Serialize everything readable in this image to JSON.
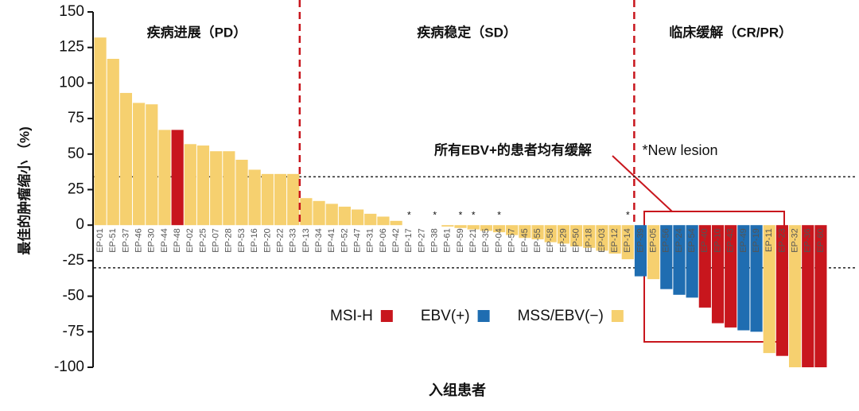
{
  "chart_data": {
    "type": "bar",
    "y_label": "最佳的肿瘤缩小 （%)",
    "x_label": "入组患者",
    "categories": [
      "EP-01",
      "EP-51",
      "EP-37",
      "EP-46",
      "EP-30",
      "EP-44",
      "EP-48",
      "EP-02",
      "EP-25",
      "EP-07",
      "EP-28",
      "EP-53",
      "EP-16",
      "EP-20",
      "EP-22",
      "EP-33",
      "EP-13",
      "EP-34",
      "EP-41",
      "EP-52",
      "EP-47",
      "EP-31",
      "EP-06",
      "EP-42",
      "EP-17",
      "EP-27",
      "EP-38",
      "EP-61",
      "EP-59",
      "EP-21",
      "EP-35",
      "EP-04",
      "EP-57",
      "EP-45",
      "EP-55",
      "EP-58",
      "EP-29",
      "EP-50",
      "EP-18",
      "EP-03",
      "EP-12",
      "EP-14",
      "EP-39",
      "EP-05",
      "EP-56",
      "EP-24",
      "EP-54",
      "EP-40",
      "EP-10",
      "EP-43",
      "EP-49",
      "EP-19",
      "EP-11",
      "EP-23",
      "EP-32",
      "EP-36",
      "EP-60"
    ],
    "values": [
      132,
      117,
      93,
      86,
      85,
      67,
      67,
      57,
      56,
      52,
      52,
      46,
      39,
      36,
      36,
      36,
      19,
      17,
      15,
      13,
      11,
      8,
      6,
      3,
      0,
      0,
      0,
      -1,
      -2,
      -3,
      -4,
      -5,
      -7,
      -9,
      -10,
      -12,
      -13,
      -15,
      -16,
      -18,
      -20,
      -24,
      -36,
      -38,
      -45,
      -49,
      -51,
      -58,
      -69,
      -72,
      -74,
      -75,
      -90,
      -92,
      -100,
      -100,
      -100
    ],
    "groups": [
      "MSS/EBV(−)",
      "MSS/EBV(−)",
      "MSS/EBV(−)",
      "MSS/EBV(−)",
      "MSS/EBV(−)",
      "MSS/EBV(−)",
      "MSI-H",
      "MSS/EBV(−)",
      "MSS/EBV(−)",
      "MSS/EBV(−)",
      "MSS/EBV(−)",
      "MSS/EBV(−)",
      "MSS/EBV(−)",
      "MSS/EBV(−)",
      "MSS/EBV(−)",
      "MSS/EBV(−)",
      "MSS/EBV(−)",
      "MSS/EBV(−)",
      "MSS/EBV(−)",
      "MSS/EBV(−)",
      "MSS/EBV(−)",
      "MSS/EBV(−)",
      "MSS/EBV(−)",
      "MSS/EBV(−)",
      "MSS/EBV(−)",
      "MSS/EBV(−)",
      "MSS/EBV(−)",
      "MSS/EBV(−)",
      "MSS/EBV(−)",
      "MSS/EBV(−)",
      "MSS/EBV(−)",
      "MSS/EBV(−)",
      "MSS/EBV(−)",
      "MSS/EBV(−)",
      "MSS/EBV(−)",
      "MSS/EBV(−)",
      "MSS/EBV(−)",
      "MSS/EBV(−)",
      "MSS/EBV(−)",
      "MSS/EBV(−)",
      "MSS/EBV(−)",
      "MSS/EBV(−)",
      "EBV(+)",
      "MSS/EBV(−)",
      "EBV(+)",
      "EBV(+)",
      "EBV(+)",
      "MSI-H",
      "MSI-H",
      "MSI-H",
      "EBV(+)",
      "EBV(+)",
      "MSS/EBV(−)",
      "MSI-H",
      "MSS/EBV(−)",
      "MSI-H",
      "MSI-H"
    ],
    "flags": [
      null,
      null,
      null,
      null,
      null,
      null,
      null,
      null,
      null,
      null,
      null,
      null,
      null,
      null,
      null,
      null,
      null,
      null,
      null,
      null,
      null,
      null,
      null,
      null,
      "*",
      null,
      "*",
      null,
      "*",
      "*",
      null,
      "*",
      null,
      null,
      null,
      null,
      null,
      null,
      null,
      null,
      null,
      "*",
      null,
      null,
      null,
      null,
      null,
      null,
      null,
      null,
      null,
      null,
      null,
      null,
      null,
      null,
      null
    ],
    "legend": [
      {
        "name": "MSI-H",
        "color": "#c8161d"
      },
      {
        "name": "EBV(+)",
        "color": "#1f6db1"
      },
      {
        "name": "MSS/EBV(−)",
        "color": "#f6d06f"
      }
    ],
    "regions": [
      {
        "label": "疾病进展（PD）",
        "from": "EP-01",
        "to": "EP-33"
      },
      {
        "label": "疾病稳定（SD）",
        "from": "EP-13",
        "to": "EP-14"
      },
      {
        "label": "临床缓解（CR/PR）",
        "from": "EP-39",
        "to": "EP-60"
      }
    ],
    "reference_lines": [
      34,
      -30
    ],
    "annotation": "所有EBV+的患者均有缓解",
    "flag_note": "*New lesion",
    "ylim": [
      -100,
      150
    ],
    "yticks": [
      -100,
      -75,
      -50,
      -25,
      0,
      25,
      50,
      75,
      100,
      125,
      150
    ]
  }
}
